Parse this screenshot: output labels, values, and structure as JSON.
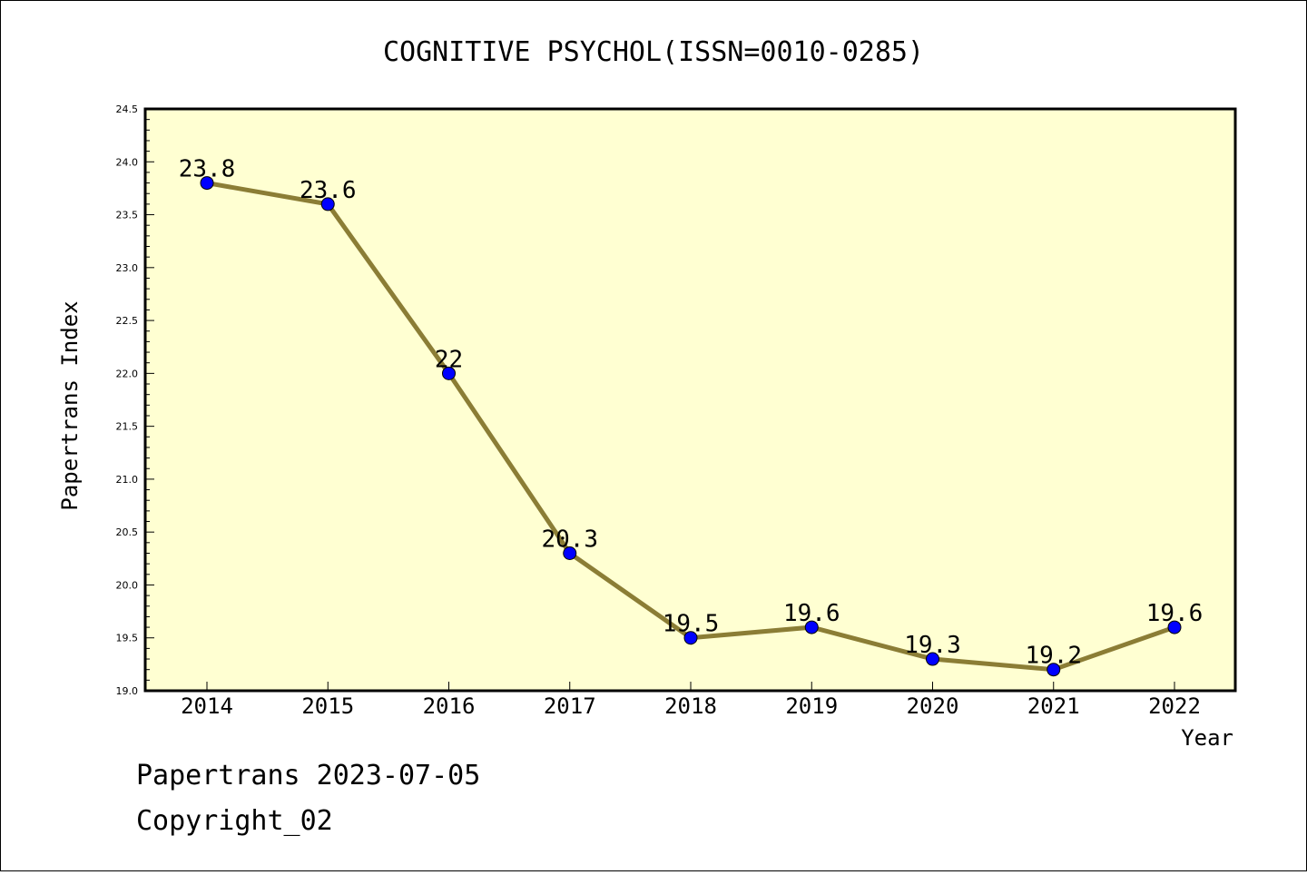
{
  "chart_data": {
    "type": "line",
    "title": "COGNITIVE PSYCHOL(ISSN=0010-0285)",
    "xlabel": "Year",
    "ylabel": "Papertrans Index",
    "x": [
      "2014",
      "2015",
      "2016",
      "2017",
      "2018",
      "2019",
      "2020",
      "2021",
      "2022"
    ],
    "values": [
      23.8,
      23.6,
      22.0,
      20.3,
      19.5,
      19.6,
      19.3,
      19.2,
      19.6
    ],
    "data_labels": [
      "23.8",
      "23.6",
      "22",
      "20.3",
      "19.5",
      "19.6",
      "19.3",
      "19.2",
      "19.6"
    ],
    "ylim": [
      19.0,
      24.5
    ],
    "yticks": [
      "19.0",
      "19.5",
      "20.0",
      "20.5",
      "21.0",
      "21.5",
      "22.0",
      "22.5",
      "23.0",
      "23.5",
      "24.0",
      "24.5"
    ],
    "grid": false,
    "colors": {
      "plot_background": "#ffffd2",
      "line": "#8b7d35",
      "marker": "#0000ff"
    }
  },
  "footer": {
    "line1": "Papertrans 2023-07-05",
    "line2": "Copyright_02"
  }
}
